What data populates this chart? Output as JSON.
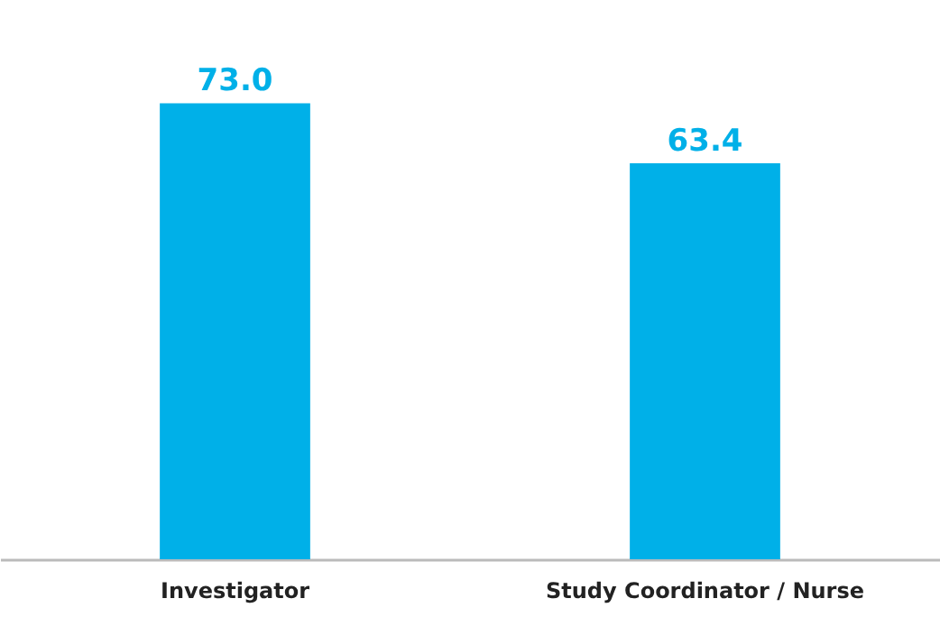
{
  "chart_data": {
    "type": "bar",
    "categories": [
      "Investigator",
      "Study Coordinator / Nurse"
    ],
    "values": [
      73.0,
      63.4
    ],
    "color": "#00b0e8",
    "value_labels": [
      "73.0",
      "63.4"
    ],
    "grid": false
  }
}
